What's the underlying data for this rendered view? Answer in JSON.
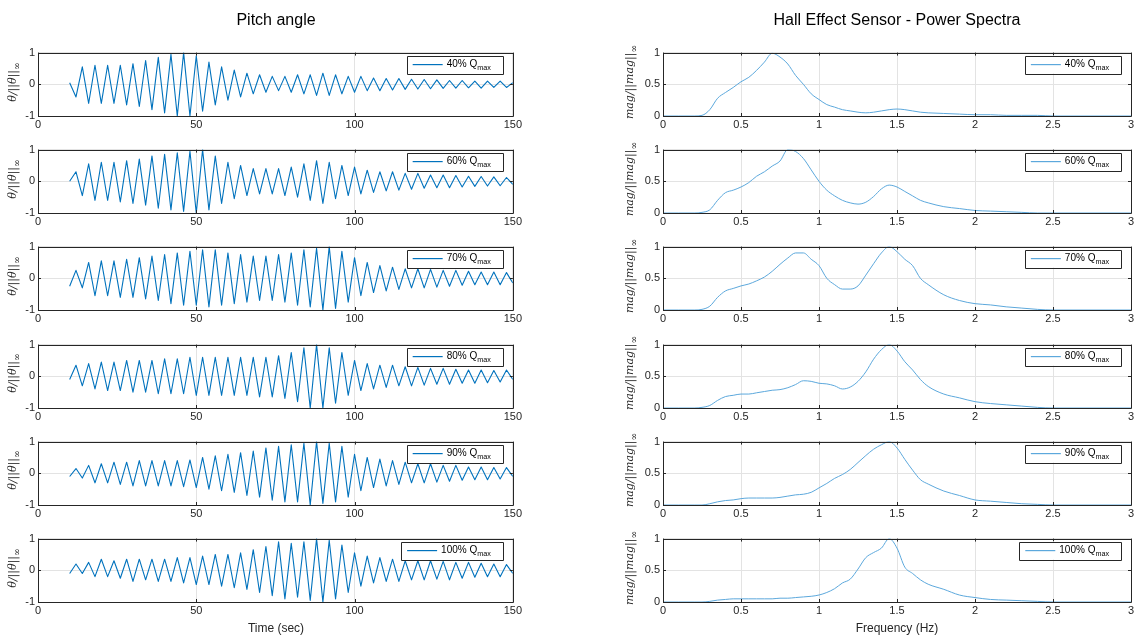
{
  "chart_data": [
    {
      "type": "line",
      "title": "Pitch angle",
      "ylabel": "θ/||θ||$_{∞}$",
      "xlim": [
        0,
        150
      ],
      "ylim": [
        -1,
        1
      ],
      "xticks": [
        0,
        50,
        100,
        150
      ],
      "yticks": [
        -1,
        0,
        1
      ],
      "grid": true,
      "legend": "top right",
      "marker": "none",
      "x": [
        10,
        12,
        14,
        16,
        18,
        20,
        22,
        24,
        26,
        28,
        30,
        32,
        34,
        36,
        38,
        40,
        42,
        44,
        46,
        48,
        50,
        52,
        54,
        56,
        58,
        60,
        62,
        64,
        66,
        68,
        70,
        72,
        74,
        76,
        78,
        80,
        82,
        84,
        86,
        88,
        90,
        92,
        94,
        96,
        98,
        100,
        102,
        104,
        106,
        108,
        110,
        112,
        114,
        116,
        118,
        120,
        122,
        124,
        126,
        128,
        130,
        132,
        134,
        136,
        138,
        140,
        142,
        144,
        146,
        148,
        150
      ],
      "series": [
        {
          "name": "40% Q$_{max}$",
          "color": "#0072bd",
          "values": [
            0.05,
            -0.4,
            0.55,
            -0.6,
            0.6,
            -0.6,
            0.6,
            -0.6,
            0.6,
            -0.65,
            0.65,
            -0.7,
            0.75,
            -0.8,
            0.85,
            -0.9,
            0.95,
            -1.0,
            1.0,
            -1.0,
            0.9,
            -0.85,
            0.7,
            -0.65,
            0.55,
            -0.5,
            0.45,
            -0.4,
            0.35,
            -0.3,
            0.3,
            -0.25,
            0.25,
            -0.2,
            0.25,
            -0.25,
            0.3,
            -0.3,
            0.3,
            -0.35,
            0.35,
            -0.35,
            0.3,
            -0.3,
            0.25,
            -0.25,
            0.25,
            -0.2,
            0.2,
            -0.2,
            0.18,
            -0.18,
            0.18,
            -0.16,
            0.16,
            -0.15,
            0.15,
            -0.14,
            0.14,
            -0.13,
            0.12,
            -0.12,
            0.12,
            -0.11,
            0.1,
            -0.12,
            0.1,
            -0.1,
            0.1,
            -0.1,
            0.05
          ]
        }
      ]
    },
    {
      "type": "line",
      "title": "Hall Effect Sensor - Power Spectra",
      "ylabel": "mag/||mag||$_{∞}$",
      "xlim": [
        0,
        3
      ],
      "ylim": [
        0,
        1
      ],
      "xticks": [
        0,
        0.5,
        1,
        1.5,
        2,
        2.5,
        3
      ],
      "yticks": [
        0,
        0.5,
        1
      ],
      "grid": true,
      "legend": "top right",
      "marker": "none",
      "x": [
        0,
        0.1,
        0.2,
        0.25,
        0.3,
        0.35,
        0.4,
        0.45,
        0.5,
        0.55,
        0.6,
        0.65,
        0.7,
        0.75,
        0.8,
        0.85,
        0.9,
        0.95,
        1.0,
        1.05,
        1.1,
        1.15,
        1.2,
        1.25,
        1.3,
        1.35,
        1.4,
        1.45,
        1.5,
        1.55,
        1.6,
        1.65,
        1.7,
        1.8,
        1.9,
        2.0,
        2.1,
        2.2,
        2.3,
        2.4,
        2.5,
        2.75,
        3
      ],
      "series": [
        {
          "name": "40% Q$_{max}$",
          "color": "#5ca8dc",
          "values": [
            0,
            0,
            0,
            0.01,
            0.1,
            0.28,
            0.37,
            0.45,
            0.54,
            0.61,
            0.72,
            0.85,
            0.99,
            0.93,
            0.82,
            0.64,
            0.5,
            0.35,
            0.26,
            0.18,
            0.14,
            0.1,
            0.08,
            0.06,
            0.05,
            0.06,
            0.08,
            0.1,
            0.11,
            0.1,
            0.08,
            0.06,
            0.05,
            0.04,
            0.03,
            0.02,
            0.02,
            0.01,
            0.01,
            0.01,
            0,
            0,
            0
          ]
        }
      ]
    },
    {
      "type": "line",
      "ylabel": "θ/||θ||$_{∞}$",
      "xlim": [
        0,
        150
      ],
      "ylim": [
        -1,
        1
      ],
      "xticks": [
        0,
        50,
        100,
        150
      ],
      "yticks": [
        -1,
        0,
        1
      ],
      "grid": true,
      "legend": "top right",
      "marker": "none",
      "x": [
        10,
        12,
        14,
        16,
        18,
        20,
        22,
        24,
        26,
        28,
        30,
        32,
        34,
        36,
        38,
        40,
        42,
        44,
        46,
        48,
        50,
        52,
        54,
        56,
        58,
        60,
        62,
        64,
        66,
        68,
        70,
        72,
        74,
        76,
        78,
        80,
        82,
        84,
        86,
        88,
        90,
        92,
        94,
        96,
        98,
        100,
        102,
        104,
        106,
        108,
        110,
        112,
        114,
        116,
        118,
        120,
        122,
        124,
        126,
        128,
        130,
        132,
        134,
        136,
        138,
        140,
        142,
        144,
        146,
        148,
        150
      ],
      "series": [
        {
          "name": "60% Q$_{max}$",
          "color": "#0072bd",
          "values": [
            0,
            0.3,
            -0.45,
            0.55,
            -0.6,
            0.6,
            -0.6,
            0.6,
            -0.65,
            0.65,
            -0.7,
            0.7,
            -0.75,
            0.8,
            -0.85,
            0.85,
            -0.9,
            0.9,
            -0.95,
            0.95,
            -1.0,
            1.0,
            -0.9,
            0.8,
            -0.7,
            0.6,
            -0.55,
            0.5,
            -0.45,
            0.4,
            -0.4,
            0.4,
            -0.4,
            0.4,
            -0.45,
            0.45,
            -0.5,
            0.55,
            -0.6,
            0.65,
            -0.7,
            0.6,
            -0.55,
            0.5,
            -0.45,
            0.45,
            -0.4,
            0.35,
            -0.35,
            0.3,
            -0.3,
            0.3,
            -0.28,
            0.25,
            -0.25,
            0.25,
            -0.22,
            0.2,
            -0.2,
            0.2,
            -0.2,
            0.18,
            -0.18,
            0.16,
            -0.16,
            0.15,
            -0.15,
            0.14,
            -0.14,
            0.12,
            -0.1
          ]
        }
      ]
    },
    {
      "type": "line",
      "ylabel": "mag/||mag||$_{∞}$",
      "xlim": [
        0,
        3
      ],
      "ylim": [
        0,
        1
      ],
      "xticks": [
        0,
        0.5,
        1,
        1.5,
        2,
        2.5,
        3
      ],
      "yticks": [
        0,
        0.5,
        1
      ],
      "grid": true,
      "legend": "top right",
      "marker": "none",
      "x": [
        0,
        0.1,
        0.2,
        0.25,
        0.3,
        0.35,
        0.4,
        0.45,
        0.5,
        0.55,
        0.6,
        0.65,
        0.7,
        0.75,
        0.8,
        0.85,
        0.9,
        0.95,
        1.0,
        1.05,
        1.1,
        1.15,
        1.2,
        1.25,
        1.3,
        1.35,
        1.4,
        1.45,
        1.5,
        1.55,
        1.6,
        1.65,
        1.7,
        1.8,
        1.9,
        2.0,
        2.1,
        2.2,
        2.3,
        2.4,
        2.5,
        2.75,
        3
      ],
      "series": [
        {
          "name": "60% Q$_{max}$",
          "color": "#5ca8dc",
          "values": [
            0,
            0,
            0,
            0.01,
            0.05,
            0.2,
            0.32,
            0.36,
            0.41,
            0.48,
            0.58,
            0.65,
            0.74,
            0.82,
            1.0,
            0.97,
            0.86,
            0.68,
            0.5,
            0.36,
            0.27,
            0.2,
            0.16,
            0.14,
            0.17,
            0.26,
            0.38,
            0.44,
            0.41,
            0.34,
            0.27,
            0.2,
            0.16,
            0.1,
            0.07,
            0.04,
            0.03,
            0.02,
            0.01,
            0,
            0,
            0,
            0
          ]
        }
      ]
    },
    {
      "type": "line",
      "ylabel": "θ/||θ||$_{∞}$",
      "xlim": [
        0,
        150
      ],
      "ylim": [
        -1,
        1
      ],
      "xticks": [
        0,
        50,
        100,
        150
      ],
      "yticks": [
        -1,
        0,
        1
      ],
      "grid": true,
      "legend": "top right",
      "marker": "none",
      "x": [
        10,
        12,
        14,
        16,
        18,
        20,
        22,
        24,
        26,
        28,
        30,
        32,
        34,
        36,
        38,
        40,
        42,
        44,
        46,
        48,
        50,
        52,
        54,
        56,
        58,
        60,
        62,
        64,
        66,
        68,
        70,
        72,
        74,
        76,
        78,
        80,
        82,
        84,
        86,
        88,
        90,
        92,
        94,
        96,
        98,
        100,
        102,
        104,
        106,
        108,
        110,
        112,
        114,
        116,
        118,
        120,
        122,
        124,
        126,
        128,
        130,
        132,
        134,
        136,
        138,
        140,
        142,
        144,
        146,
        148,
        150
      ],
      "series": [
        {
          "name": "70% Q$_{max}$",
          "color": "#0072bd",
          "values": [
            -0.25,
            0.25,
            -0.3,
            0.5,
            -0.55,
            0.55,
            -0.55,
            0.55,
            -0.6,
            0.6,
            -0.6,
            0.65,
            -0.65,
            0.7,
            -0.7,
            0.75,
            -0.8,
            0.8,
            -0.85,
            0.85,
            -0.85,
            0.9,
            -0.9,
            0.9,
            -0.85,
            0.8,
            -0.8,
            0.75,
            -0.75,
            0.7,
            -0.7,
            0.7,
            -0.7,
            0.75,
            -0.75,
            0.8,
            -0.85,
            0.9,
            -0.9,
            0.95,
            -1.0,
            1.0,
            -0.95,
            0.85,
            -0.75,
            0.65,
            -0.55,
            0.5,
            -0.45,
            0.4,
            -0.4,
            0.35,
            -0.35,
            0.3,
            -0.3,
            0.3,
            -0.3,
            0.28,
            -0.28,
            0.25,
            -0.25,
            0.25,
            -0.22,
            0.22,
            -0.2,
            0.2,
            -0.2,
            0.2,
            -0.2,
            0.18,
            -0.15
          ]
        }
      ]
    },
    {
      "type": "line",
      "ylabel": "mag/||mag||$_{∞}$",
      "xlim": [
        0,
        3
      ],
      "ylim": [
        0,
        1
      ],
      "xticks": [
        0,
        0.5,
        1,
        1.5,
        2,
        2.5,
        3
      ],
      "yticks": [
        0,
        0.5,
        1
      ],
      "grid": true,
      "legend": "top right",
      "marker": "none",
      "x": [
        0,
        0.1,
        0.2,
        0.25,
        0.3,
        0.35,
        0.4,
        0.45,
        0.5,
        0.55,
        0.6,
        0.65,
        0.7,
        0.75,
        0.8,
        0.85,
        0.9,
        0.95,
        1.0,
        1.05,
        1.1,
        1.15,
        1.2,
        1.25,
        1.3,
        1.35,
        1.4,
        1.45,
        1.5,
        1.55,
        1.6,
        1.65,
        1.7,
        1.8,
        1.9,
        2.0,
        2.1,
        2.2,
        2.3,
        2.4,
        2.5,
        2.75,
        3
      ],
      "series": [
        {
          "name": "70% Q$_{max}$",
          "color": "#5ca8dc",
          "values": [
            0,
            0,
            0,
            0.01,
            0.06,
            0.2,
            0.3,
            0.34,
            0.38,
            0.41,
            0.46,
            0.52,
            0.61,
            0.72,
            0.82,
            0.9,
            0.9,
            0.8,
            0.7,
            0.5,
            0.4,
            0.33,
            0.33,
            0.38,
            0.55,
            0.73,
            0.9,
            1.0,
            0.92,
            0.8,
            0.7,
            0.5,
            0.4,
            0.24,
            0.15,
            0.1,
            0.08,
            0.05,
            0.03,
            0.01,
            0,
            0,
            0
          ]
        }
      ]
    },
    {
      "type": "line",
      "ylabel": "θ/||θ||$_{∞}$",
      "xlim": [
        0,
        150
      ],
      "ylim": [
        -1,
        1
      ],
      "xticks": [
        0,
        50,
        100,
        150
      ],
      "yticks": [
        -1,
        0,
        1
      ],
      "grid": true,
      "legend": "top right",
      "marker": "none",
      "x": [
        10,
        12,
        14,
        16,
        18,
        20,
        22,
        24,
        26,
        28,
        30,
        32,
        34,
        36,
        38,
        40,
        42,
        44,
        46,
        48,
        50,
        52,
        54,
        56,
        58,
        60,
        62,
        64,
        66,
        68,
        70,
        72,
        74,
        76,
        78,
        80,
        82,
        84,
        86,
        88,
        90,
        92,
        94,
        96,
        98,
        100,
        102,
        104,
        106,
        108,
        110,
        112,
        114,
        116,
        118,
        120,
        122,
        124,
        126,
        128,
        130,
        132,
        134,
        136,
        138,
        140,
        142,
        144,
        146,
        148,
        150
      ],
      "series": [
        {
          "name": "80% Q$_{max}$",
          "color": "#0072bd",
          "values": [
            -0.1,
            0.35,
            -0.3,
            0.4,
            -0.4,
            0.45,
            -0.45,
            0.45,
            -0.45,
            0.5,
            -0.5,
            0.5,
            -0.5,
            0.5,
            -0.55,
            0.55,
            -0.55,
            0.55,
            -0.55,
            0.6,
            -0.6,
            0.6,
            -0.6,
            0.6,
            -0.6,
            0.6,
            -0.6,
            0.6,
            -0.6,
            0.6,
            -0.65,
            0.6,
            -0.65,
            0.65,
            -0.7,
            0.75,
            -0.8,
            0.9,
            -1.0,
            1.0,
            -1.0,
            0.9,
            -0.85,
            0.75,
            -0.6,
            0.5,
            -0.45,
            0.4,
            -0.4,
            0.35,
            -0.35,
            0.35,
            -0.3,
            0.3,
            -0.3,
            0.28,
            -0.28,
            0.25,
            -0.25,
            0.25,
            -0.25,
            0.22,
            -0.22,
            0.2,
            -0.22,
            0.2,
            -0.2,
            0.18,
            -0.18,
            0.2,
            -0.1
          ]
        }
      ]
    },
    {
      "type": "line",
      "ylabel": "mag/||mag||$_{∞}$",
      "xlim": [
        0,
        3
      ],
      "ylim": [
        0,
        1
      ],
      "xticks": [
        0,
        0.5,
        1,
        1.5,
        2,
        2.5,
        3
      ],
      "yticks": [
        0,
        0.5,
        1
      ],
      "grid": true,
      "legend": "top right",
      "marker": "none",
      "x": [
        0,
        0.1,
        0.2,
        0.25,
        0.3,
        0.35,
        0.4,
        0.45,
        0.5,
        0.55,
        0.6,
        0.65,
        0.7,
        0.75,
        0.8,
        0.85,
        0.9,
        0.95,
        1.0,
        1.05,
        1.1,
        1.15,
        1.2,
        1.25,
        1.3,
        1.35,
        1.4,
        1.45,
        1.5,
        1.55,
        1.6,
        1.65,
        1.7,
        1.8,
        1.9,
        2.0,
        2.1,
        2.2,
        2.3,
        2.4,
        2.5,
        2.75,
        3
      ],
      "series": [
        {
          "name": "80% Q$_{max}$",
          "color": "#5ca8dc",
          "values": [
            0,
            0,
            0,
            0.01,
            0.04,
            0.12,
            0.18,
            0.2,
            0.22,
            0.22,
            0.24,
            0.26,
            0.28,
            0.29,
            0.32,
            0.37,
            0.43,
            0.42,
            0.39,
            0.38,
            0.35,
            0.3,
            0.33,
            0.42,
            0.57,
            0.77,
            0.92,
            1.0,
            0.9,
            0.73,
            0.6,
            0.45,
            0.34,
            0.22,
            0.16,
            0.1,
            0.07,
            0.05,
            0.03,
            0.01,
            0,
            0,
            0
          ]
        }
      ]
    },
    {
      "type": "line",
      "ylabel": "θ/||θ||$_{∞}$",
      "xlim": [
        0,
        150
      ],
      "ylim": [
        -1,
        1
      ],
      "xticks": [
        0,
        50,
        100,
        150
      ],
      "yticks": [
        -1,
        0,
        1
      ],
      "grid": true,
      "legend": "top right",
      "marker": "none",
      "x": [
        10,
        12,
        14,
        16,
        18,
        20,
        22,
        24,
        26,
        28,
        30,
        32,
        34,
        36,
        38,
        40,
        42,
        44,
        46,
        48,
        50,
        52,
        54,
        56,
        58,
        60,
        62,
        64,
        66,
        68,
        70,
        72,
        74,
        76,
        78,
        80,
        82,
        84,
        86,
        88,
        90,
        92,
        94,
        96,
        98,
        100,
        102,
        104,
        106,
        108,
        110,
        112,
        114,
        116,
        118,
        120,
        122,
        124,
        126,
        128,
        130,
        132,
        134,
        136,
        138,
        140,
        142,
        144,
        146,
        148,
        150
      ],
      "series": [
        {
          "name": "90% Q$_{max}$",
          "color": "#0072bd",
          "values": [
            -0.1,
            0.15,
            -0.15,
            0.25,
            -0.3,
            0.3,
            -0.3,
            0.35,
            -0.35,
            0.35,
            -0.4,
            0.4,
            -0.4,
            0.4,
            -0.4,
            0.4,
            -0.4,
            0.4,
            -0.42,
            0.42,
            -0.45,
            0.5,
            -0.5,
            0.55,
            -0.55,
            0.6,
            -0.6,
            0.65,
            -0.7,
            0.7,
            -0.75,
            0.8,
            -0.85,
            0.85,
            -0.9,
            0.9,
            -0.9,
            0.95,
            -1.0,
            1.0,
            -0.95,
            0.95,
            -0.9,
            0.85,
            -0.75,
            0.6,
            -0.55,
            0.5,
            -0.45,
            0.45,
            -0.4,
            0.4,
            -0.35,
            0.35,
            -0.3,
            0.3,
            -0.3,
            0.3,
            -0.28,
            0.25,
            -0.25,
            0.25,
            -0.22,
            0.2,
            -0.2,
            0.2,
            -0.2,
            0.18,
            -0.18,
            0.18,
            -0.1
          ]
        }
      ]
    },
    {
      "type": "line",
      "ylabel": "mag/||mag||$_{∞}$",
      "xlim": [
        0,
        3
      ],
      "ylim": [
        0,
        1
      ],
      "xticks": [
        0,
        0.5,
        1,
        1.5,
        2,
        2.5,
        3
      ],
      "yticks": [
        0,
        0.5,
        1
      ],
      "grid": true,
      "legend": "top right",
      "marker": "none",
      "x": [
        0,
        0.1,
        0.2,
        0.25,
        0.3,
        0.35,
        0.4,
        0.45,
        0.5,
        0.55,
        0.6,
        0.65,
        0.7,
        0.75,
        0.8,
        0.85,
        0.9,
        0.95,
        1.0,
        1.05,
        1.1,
        1.15,
        1.2,
        1.25,
        1.3,
        1.35,
        1.4,
        1.45,
        1.5,
        1.55,
        1.6,
        1.65,
        1.7,
        1.8,
        1.9,
        2.0,
        2.1,
        2.2,
        2.3,
        2.4,
        2.5,
        2.75,
        3
      ],
      "series": [
        {
          "name": "90% Q$_{max}$",
          "color": "#5ca8dc",
          "values": [
            0,
            0,
            0,
            0,
            0.02,
            0.05,
            0.07,
            0.08,
            0.1,
            0.11,
            0.11,
            0.11,
            0.11,
            0.12,
            0.14,
            0.16,
            0.17,
            0.2,
            0.27,
            0.34,
            0.42,
            0.48,
            0.56,
            0.67,
            0.78,
            0.88,
            0.95,
            1.0,
            0.9,
            0.72,
            0.55,
            0.4,
            0.33,
            0.22,
            0.15,
            0.08,
            0.06,
            0.04,
            0.02,
            0.01,
            0,
            0,
            0
          ]
        }
      ]
    },
    {
      "type": "line",
      "xlabel": "Time (sec)",
      "ylabel": "θ/||θ||$_{∞}$",
      "xlim": [
        0,
        150
      ],
      "ylim": [
        -1,
        1
      ],
      "xticks": [
        0,
        50,
        100,
        150
      ],
      "yticks": [
        -1,
        0,
        1
      ],
      "grid": true,
      "legend": "top right",
      "marker": "none",
      "x": [
        10,
        12,
        14,
        16,
        18,
        20,
        22,
        24,
        26,
        28,
        30,
        32,
        34,
        36,
        38,
        40,
        42,
        44,
        46,
        48,
        50,
        52,
        54,
        56,
        58,
        60,
        62,
        64,
        66,
        68,
        70,
        72,
        74,
        76,
        78,
        80,
        82,
        84,
        86,
        88,
        90,
        92,
        94,
        96,
        98,
        100,
        102,
        104,
        106,
        108,
        110,
        112,
        114,
        116,
        118,
        120,
        122,
        124,
        126,
        128,
        130,
        132,
        134,
        136,
        138,
        140,
        142,
        144,
        146,
        148,
        150
      ],
      "series": [
        {
          "name": "100% Q$_{max}$",
          "color": "#0072bd",
          "values": [
            -0.1,
            0.2,
            -0.1,
            0.25,
            -0.2,
            0.35,
            -0.2,
            0.3,
            -0.25,
            0.35,
            -0.35,
            0.35,
            -0.3,
            0.35,
            -0.35,
            0.35,
            -0.35,
            0.4,
            -0.4,
            0.4,
            -0.45,
            0.45,
            -0.45,
            0.5,
            -0.5,
            0.5,
            -0.55,
            0.55,
            -0.6,
            0.65,
            -0.7,
            0.75,
            -0.8,
            0.9,
            -0.9,
            0.85,
            -0.85,
            0.9,
            -0.95,
            1.0,
            -1.0,
            0.95,
            -0.9,
            0.8,
            -0.7,
            0.55,
            -0.5,
            0.45,
            -0.4,
            0.4,
            -0.35,
            0.35,
            -0.35,
            0.3,
            -0.3,
            0.3,
            -0.3,
            0.3,
            -0.28,
            0.28,
            -0.3,
            0.25,
            -0.25,
            0.25,
            -0.22,
            0.22,
            -0.2,
            0.2,
            -0.2,
            0.18,
            -0.1
          ]
        }
      ]
    },
    {
      "type": "line",
      "xlabel": "Frequency (Hz)",
      "ylabel": "mag/||mag||$_{∞}$",
      "xlim": [
        0,
        3
      ],
      "ylim": [
        0,
        1
      ],
      "xticks": [
        0,
        0.5,
        1,
        1.5,
        2,
        2.5,
        3
      ],
      "yticks": [
        0,
        0.5,
        1
      ],
      "grid": true,
      "legend": "top right",
      "marker": "none",
      "x": [
        0,
        0.1,
        0.2,
        0.25,
        0.3,
        0.35,
        0.4,
        0.45,
        0.5,
        0.55,
        0.6,
        0.65,
        0.7,
        0.75,
        0.8,
        0.85,
        0.9,
        0.95,
        1.0,
        1.05,
        1.1,
        1.15,
        1.2,
        1.25,
        1.3,
        1.35,
        1.4,
        1.45,
        1.5,
        1.55,
        1.6,
        1.65,
        1.7,
        1.8,
        1.9,
        2.0,
        2.1,
        2.2,
        2.3,
        2.4,
        2.5,
        2.75,
        3
      ],
      "series": [
        {
          "name": "100% Q$_{max}$",
          "color": "#5ca8dc",
          "values": [
            0,
            0,
            0,
            0,
            0.01,
            0.03,
            0.04,
            0.05,
            0.05,
            0.05,
            0.05,
            0.05,
            0.05,
            0.06,
            0.06,
            0.07,
            0.08,
            0.09,
            0.11,
            0.15,
            0.21,
            0.3,
            0.36,
            0.52,
            0.7,
            0.78,
            0.85,
            1.0,
            0.85,
            0.55,
            0.45,
            0.35,
            0.28,
            0.2,
            0.11,
            0.07,
            0.04,
            0.03,
            0.02,
            0.01,
            0,
            0,
            0
          ]
        }
      ]
    }
  ]
}
